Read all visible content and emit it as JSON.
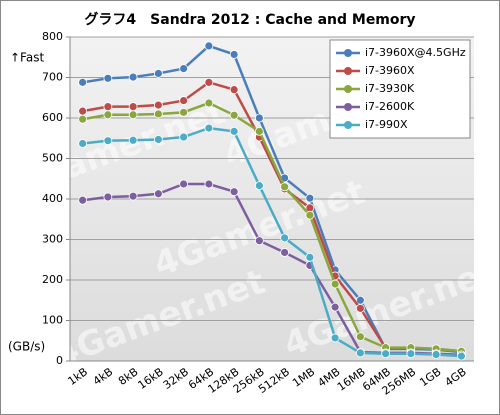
{
  "chart_data": {
    "type": "line",
    "title": "グラフ4　Sandra 2012 : Cache and Memory",
    "y_label_top": "↑Fast",
    "y_label": "(GB/s)",
    "watermark": "4Gamer.net",
    "categories": [
      "1kB",
      "4kB",
      "8kB",
      "16kB",
      "32kB",
      "64kB",
      "128kB",
      "256kB",
      "512kB",
      "1MB",
      "4MB",
      "16MB",
      "64MB",
      "256MB",
      "1GB",
      "4GB"
    ],
    "series": [
      {
        "name": "i7-3960X@4.5GHz",
        "color": "#4a7ebb",
        "values": [
          688,
          698,
          701,
          710,
          722,
          778,
          757,
          600,
          452,
          402,
          225,
          150,
          30,
          30,
          28,
          22
        ]
      },
      {
        "name": "i7-3960X",
        "color": "#be4b48",
        "values": [
          617,
          628,
          628,
          632,
          643,
          688,
          670,
          553,
          425,
          378,
          210,
          130,
          32,
          32,
          30,
          24
        ]
      },
      {
        "name": "i7-3930K",
        "color": "#8aa63f",
        "values": [
          597,
          608,
          608,
          610,
          614,
          637,
          607,
          567,
          430,
          360,
          190,
          60,
          33,
          33,
          30,
          24
        ]
      },
      {
        "name": "i7-2600K",
        "color": "#7d5fa0",
        "values": [
          397,
          405,
          407,
          413,
          437,
          437,
          418,
          297,
          268,
          236,
          133,
          22,
          20,
          20,
          18,
          15
        ]
      },
      {
        "name": "i7-990X",
        "color": "#4bacc6",
        "values": [
          537,
          544,
          545,
          547,
          553,
          575,
          567,
          433,
          304,
          256,
          57,
          20,
          18,
          18,
          16,
          12
        ]
      }
    ],
    "ylim": [
      0,
      800
    ],
    "yticks": [
      0,
      100,
      200,
      300,
      400,
      500,
      600,
      700,
      800
    ],
    "grid": true,
    "legend": "top-right"
  }
}
